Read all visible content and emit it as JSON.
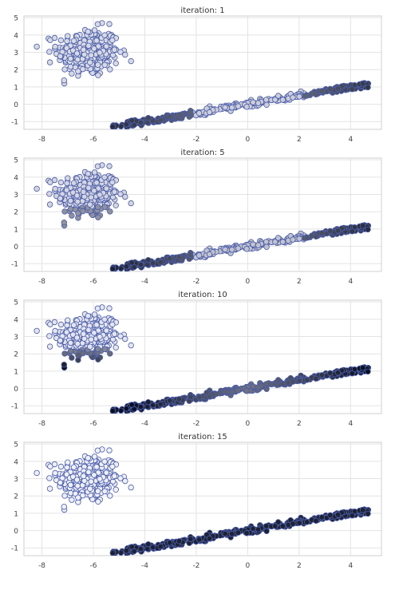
{
  "figure": {
    "subplot_count": 4
  },
  "chart_data": [
    {
      "type": "scatter",
      "title": "iteration: 1",
      "xlim": [
        -8.7,
        5.2
      ],
      "ylim": [
        -1.45,
        5.1
      ],
      "xticks": [
        -8,
        -6,
        -4,
        -2,
        0,
        2,
        4
      ],
      "yticks": [
        -1,
        0,
        1,
        2,
        3,
        4,
        5
      ],
      "grid": true,
      "legend": "none",
      "iteration": 1,
      "series": [
        {
          "cluster": "blob",
          "center": [
            -6.2,
            3.0
          ],
          "spread": [
            0.6,
            0.7
          ],
          "count": 300,
          "x_range": [
            -8.2,
            -4.0
          ],
          "y_range": [
            1.2,
            4.9
          ]
        },
        {
          "cluster": "line",
          "fit": {
            "slope": 0.25,
            "intercept": 0.0
          },
          "x_range": [
            -5.3,
            4.7
          ],
          "noise": 0.09,
          "count": 350
        }
      ],
      "colors": {
        "edge": "#4a5cab",
        "light_fill": "#eef0fa",
        "dark_fill": "#0b1020"
      }
    },
    {
      "type": "scatter",
      "title": "iteration: 5",
      "xlim": [
        -8.7,
        5.2
      ],
      "ylim": [
        -1.45,
        5.1
      ],
      "xticks": [
        -8,
        -6,
        -4,
        -2,
        0,
        2,
        4
      ],
      "yticks": [
        -1,
        0,
        1,
        2,
        3,
        4,
        5
      ],
      "grid": true,
      "legend": "none",
      "iteration": 5,
      "series": [
        {
          "cluster": "blob",
          "center": [
            -6.2,
            3.0
          ],
          "spread": [
            0.6,
            0.7
          ],
          "count": 300,
          "x_range": [
            -8.2,
            -4.0
          ],
          "y_range": [
            1.2,
            4.9
          ]
        },
        {
          "cluster": "line",
          "fit": {
            "slope": 0.25,
            "intercept": 0.0
          },
          "x_range": [
            -5.3,
            4.7
          ],
          "noise": 0.09,
          "count": 350
        }
      ],
      "colors": {
        "edge": "#4a5cab",
        "light_fill": "#eef0fa",
        "dark_fill": "#0b1020"
      }
    },
    {
      "type": "scatter",
      "title": "iteration: 10",
      "xlim": [
        -8.7,
        5.2
      ],
      "ylim": [
        -1.45,
        5.1
      ],
      "xticks": [
        -8,
        -6,
        -4,
        -2,
        0,
        2,
        4
      ],
      "yticks": [
        -1,
        0,
        1,
        2,
        3,
        4,
        5
      ],
      "grid": true,
      "legend": "none",
      "iteration": 10,
      "series": [
        {
          "cluster": "blob",
          "center": [
            -6.2,
            3.0
          ],
          "spread": [
            0.6,
            0.7
          ],
          "count": 300,
          "x_range": [
            -8.2,
            -4.0
          ],
          "y_range": [
            1.2,
            4.9
          ]
        },
        {
          "cluster": "line",
          "fit": {
            "slope": 0.25,
            "intercept": 0.0
          },
          "x_range": [
            -5.3,
            4.7
          ],
          "noise": 0.09,
          "count": 350
        }
      ],
      "colors": {
        "edge": "#4a5cab",
        "light_fill": "#eef0fa",
        "dark_fill": "#0b1020"
      }
    },
    {
      "type": "scatter",
      "title": "iteration: 15",
      "xlim": [
        -8.7,
        5.2
      ],
      "ylim": [
        -1.45,
        5.1
      ],
      "xticks": [
        -8,
        -6,
        -4,
        -2,
        0,
        2,
        4
      ],
      "yticks": [
        -1,
        0,
        1,
        2,
        3,
        4,
        5
      ],
      "grid": true,
      "legend": "none",
      "iteration": 15,
      "series": [
        {
          "cluster": "blob",
          "center": [
            -6.2,
            3.0
          ],
          "spread": [
            0.6,
            0.7
          ],
          "count": 300,
          "x_range": [
            -8.2,
            -4.0
          ],
          "y_range": [
            1.2,
            4.9
          ]
        },
        {
          "cluster": "line",
          "fit": {
            "slope": 0.25,
            "intercept": 0.0
          },
          "x_range": [
            -5.3,
            4.7
          ],
          "noise": 0.09,
          "count": 350
        }
      ],
      "colors": {
        "edge": "#4a5cab",
        "light_fill": "#eef0fa",
        "dark_fill": "#0b1020"
      }
    }
  ]
}
